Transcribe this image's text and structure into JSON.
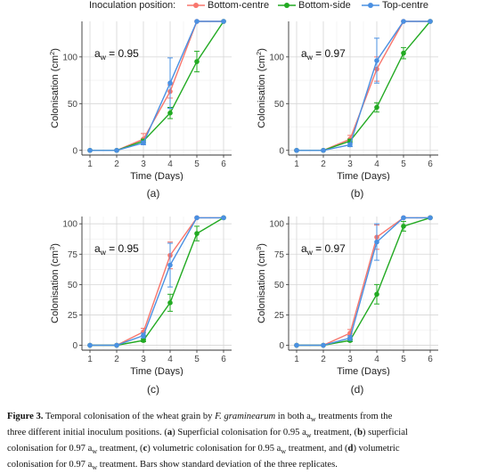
{
  "legend": {
    "title": "Inoculation position:",
    "items": [
      {
        "label": "Bottom-centre",
        "color": "#F8766D"
      },
      {
        "label": "Bottom-side",
        "color": "#22AA22"
      },
      {
        "label": "Top-centre",
        "color": "#4A90E2"
      }
    ]
  },
  "chart_data": [
    {
      "type": "line",
      "panel_label": "(a)",
      "annotation": "a",
      "annotation_sub": "w",
      "annotation_value": " = 0.95",
      "xlabel": "Time (Days)",
      "ylabel": "Colonisation (cm",
      "ylabel_sup": "2",
      "ylabel_end": ")",
      "x": [
        1,
        2,
        3,
        4,
        5,
        6
      ],
      "xlim": [
        0.7,
        6.3
      ],
      "ylim": [
        -5,
        138
      ],
      "yticks": [
        0,
        50,
        100
      ],
      "series": [
        {
          "name": "Bottom-centre",
          "color": "#F8766D",
          "values": [
            0,
            0,
            12,
            63,
            138,
            138
          ],
          "err": [
            0,
            0,
            6,
            7,
            0,
            0
          ]
        },
        {
          "name": "Bottom-side",
          "color": "#22AA22",
          "values": [
            0,
            0,
            10,
            40,
            95,
            138
          ],
          "err": [
            0,
            0,
            2,
            6,
            11,
            0
          ]
        },
        {
          "name": "Top-centre",
          "color": "#4A90E2",
          "values": [
            0,
            0,
            8,
            72,
            138,
            138
          ],
          "err": [
            0,
            0,
            2,
            27,
            0,
            0
          ]
        }
      ]
    },
    {
      "type": "line",
      "panel_label": "(b)",
      "annotation": "a",
      "annotation_sub": "w",
      "annotation_value": " = 0.97",
      "xlabel": "Time (Days)",
      "ylabel": "Colonisation (cm",
      "ylabel_sup": "2",
      "ylabel_end": ")",
      "x": [
        1,
        2,
        3,
        4,
        5,
        6
      ],
      "xlim": [
        0.7,
        6.3
      ],
      "ylim": [
        -5,
        138
      ],
      "yticks": [
        0,
        50,
        100
      ],
      "series": [
        {
          "name": "Bottom-centre",
          "color": "#F8766D",
          "values": [
            0,
            0,
            12,
            87,
            138,
            138
          ],
          "err": [
            0,
            0,
            4,
            13,
            0,
            0
          ]
        },
        {
          "name": "Bottom-side",
          "color": "#22AA22",
          "values": [
            0,
            0,
            10,
            46,
            104,
            138
          ],
          "err": [
            0,
            0,
            2,
            5,
            6,
            0
          ]
        },
        {
          "name": "Top-centre",
          "color": "#4A90E2",
          "values": [
            0,
            0,
            6,
            96,
            138,
            138
          ],
          "err": [
            0,
            0,
            2,
            24,
            0,
            0
          ]
        }
      ]
    },
    {
      "type": "line",
      "panel_label": "(c)",
      "annotation": "a",
      "annotation_sub": "w",
      "annotation_value": " = 0.95",
      "xlabel": "Time (Days)",
      "ylabel": "Colonisation (cm",
      "ylabel_sup": "3",
      "ylabel_end": ")",
      "x": [
        1,
        2,
        3,
        4,
        5,
        6
      ],
      "xlim": [
        0.7,
        6.3
      ],
      "ylim": [
        -4,
        106
      ],
      "yticks": [
        0,
        25,
        50,
        75,
        100
      ],
      "series": [
        {
          "name": "Bottom-centre",
          "color": "#F8766D",
          "values": [
            0,
            0,
            11,
            74,
            105,
            105
          ],
          "err": [
            0,
            0,
            3,
            11,
            0,
            0
          ]
        },
        {
          "name": "Bottom-side",
          "color": "#22AA22",
          "values": [
            0,
            0,
            4,
            35,
            92,
            105
          ],
          "err": [
            0,
            0,
            1,
            7,
            6,
            0
          ]
        },
        {
          "name": "Top-centre",
          "color": "#4A90E2",
          "values": [
            0,
            0,
            8,
            66,
            105,
            105
          ],
          "err": [
            0,
            0,
            2,
            18,
            0,
            0
          ]
        }
      ]
    },
    {
      "type": "line",
      "panel_label": "(d)",
      "annotation": "a",
      "annotation_sub": "w",
      "annotation_value": " = 0.97",
      "xlabel": "Time (Days)",
      "ylabel": "Colonisation (cm",
      "ylabel_sup": "3",
      "ylabel_end": ")",
      "x": [
        1,
        2,
        3,
        4,
        5,
        6
      ],
      "xlim": [
        0.7,
        6.3
      ],
      "ylim": [
        -4,
        106
      ],
      "yticks": [
        0,
        25,
        50,
        75,
        100
      ],
      "series": [
        {
          "name": "Bottom-centre",
          "color": "#F8766D",
          "values": [
            0,
            0,
            10,
            89,
            105,
            105
          ],
          "err": [
            0,
            0,
            3,
            10,
            0,
            0
          ]
        },
        {
          "name": "Bottom-side",
          "color": "#22AA22",
          "values": [
            0,
            0,
            4,
            42,
            98,
            105
          ],
          "err": [
            0,
            0,
            1,
            8,
            4,
            0
          ]
        },
        {
          "name": "Top-centre",
          "color": "#4A90E2",
          "values": [
            0,
            0,
            6,
            85,
            105,
            105
          ],
          "err": [
            0,
            0,
            2,
            15,
            0,
            0
          ]
        }
      ]
    }
  ],
  "caption": {
    "title": "Figure 3.",
    "line1_pre": " Temporal colonisation of the wheat grain by ",
    "line1_species": "F. graminearum",
    "line1_mid": " in both a",
    "line1_sub": "w",
    "line1_end": " treatments from the",
    "line2_pre": "three different initial inoculum positions. (",
    "line2_a": "a",
    "line2_mid1": ") Superficial colonisation for 0.95 a",
    "line2_sub": "w",
    "line2_mid2": " treatment, (",
    "line2_b": "b",
    "line2_end": ") superficial",
    "line3_pre": "colonisation for 0.97 a",
    "line3_sub": "w",
    "line3_mid1": " treatment, (",
    "line3_c": "c",
    "line3_mid2": ") volumetric colonisation for 0.95 a",
    "line3_sub2": "w",
    "line3_mid3": " treatment, and (",
    "line3_d": "d",
    "line3_end": ") volumetric",
    "line4_pre": "colonisation for 0.97 a",
    "line4_sub": "w",
    "line4_end": " treatment. Bars show standard deviation of the three replicates."
  }
}
